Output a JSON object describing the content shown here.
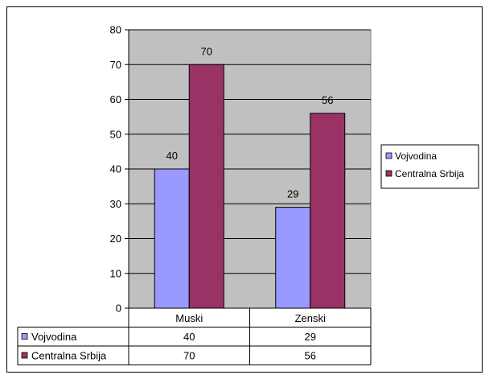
{
  "chart_data": {
    "type": "bar",
    "categories": [
      "Muski",
      "Zenski"
    ],
    "series": [
      {
        "name": "Vojvodina",
        "values": [
          40,
          29
        ],
        "color": "#9999ff"
      },
      {
        "name": "Centralna Srbija",
        "values": [
          70,
          56
        ],
        "color": "#993366"
      }
    ],
    "ylim": [
      0,
      80
    ],
    "yticks": [
      "0",
      "10",
      "20",
      "30",
      "40",
      "50",
      "60",
      "70",
      "80"
    ],
    "data_labels": [
      [
        "40",
        "29"
      ],
      [
        "70",
        "56"
      ]
    ],
    "table": {
      "rows": [
        {
          "label": "Vojvodina",
          "cells": [
            "40",
            "29"
          ]
        },
        {
          "label": "Centralna Srbija",
          "cells": [
            "70",
            "56"
          ]
        }
      ]
    },
    "legend_position": "right",
    "grid": true,
    "plot_background": "#c0c0c0"
  }
}
